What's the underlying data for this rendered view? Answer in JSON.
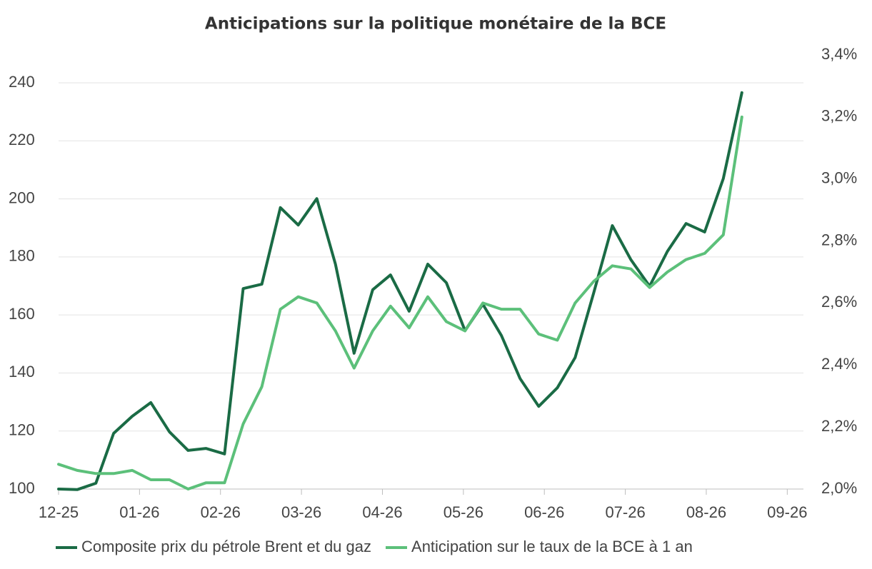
{
  "chart_data": {
    "type": "line",
    "title": "Anticipations sur la politique monétaire de la BCE",
    "x": [
      0,
      0.23,
      0.46,
      0.68,
      0.91,
      1.14,
      1.37,
      1.6,
      1.82,
      2.05,
      2.28,
      2.51,
      2.74,
      2.96,
      3.19,
      3.42,
      3.65,
      3.88,
      4.1,
      4.33,
      4.56,
      4.79,
      5.02,
      5.24,
      5.47,
      5.7,
      5.93,
      6.16,
      6.38,
      6.61,
      6.84,
      7.07,
      7.3,
      7.52,
      7.75,
      7.98,
      8.21,
      8.44
    ],
    "xlim": [
      0,
      9.2
    ],
    "xticks": [
      {
        "value": 0,
        "label": "12-25"
      },
      {
        "value": 1,
        "label": "01-26"
      },
      {
        "value": 2,
        "label": "02-26"
      },
      {
        "value": 3,
        "label": "03-26"
      },
      {
        "value": 4,
        "label": "04-26"
      },
      {
        "value": 5,
        "label": "05-26"
      },
      {
        "value": 6,
        "label": "06-26"
      },
      {
        "value": 7,
        "label": "07-26"
      },
      {
        "value": 8,
        "label": "08-26"
      },
      {
        "value": 9,
        "label": "09-26"
      }
    ],
    "ylim": [
      100,
      249.6
    ],
    "yticks": [
      100,
      120,
      140,
      160,
      180,
      200,
      220,
      240
    ],
    "y2lim": [
      2.0,
      3.4
    ],
    "y2ticks": [
      {
        "value": 2.0,
        "label": "2,0%"
      },
      {
        "value": 2.2,
        "label": "2,2%"
      },
      {
        "value": 2.4,
        "label": "2,4%"
      },
      {
        "value": 2.6,
        "label": "2,6%"
      },
      {
        "value": 2.8,
        "label": "2,8%"
      },
      {
        "value": 3.0,
        "label": "3,0%"
      },
      {
        "value": 3.2,
        "label": "3,2%"
      },
      {
        "value": 3.4,
        "label": "3,4%"
      }
    ],
    "grid": true,
    "legend": "bottom",
    "series": [
      {
        "name": "Composite prix du pétrole Brent et du gaz",
        "color": "#1a6b45",
        "values": [
          100,
          99.8,
          102,
          119.2,
          125.1,
          129.8,
          119.7,
          113.3,
          114,
          112.1,
          169.1,
          170.6,
          197,
          191,
          200.1,
          177.5,
          146.8,
          168.7,
          173.8,
          161.3,
          177.5,
          171.1,
          154.6,
          163.7,
          152.9,
          138.1,
          128.5,
          134.9,
          145.3,
          167.7,
          190.8,
          179,
          169.9,
          181.9,
          191.5,
          188.6,
          207,
          236.6
        ]
      },
      {
        "name": "Anticipation sur le taux de la BCE à 1 an",
        "color": "#5cc07a",
        "axis": "y2",
        "values": [
          2.08,
          2.06,
          2.05,
          2.05,
          2.06,
          2.03,
          2.03,
          2.0,
          2.02,
          2.02,
          2.21,
          2.33,
          2.58,
          2.62,
          2.6,
          2.51,
          2.39,
          2.51,
          2.59,
          2.52,
          2.62,
          2.54,
          2.51,
          2.6,
          2.58,
          2.58,
          2.5,
          2.48,
          2.6,
          2.67,
          2.72,
          2.71,
          2.65,
          2.7,
          2.74,
          2.76,
          2.82,
          3.2
        ]
      }
    ]
  }
}
